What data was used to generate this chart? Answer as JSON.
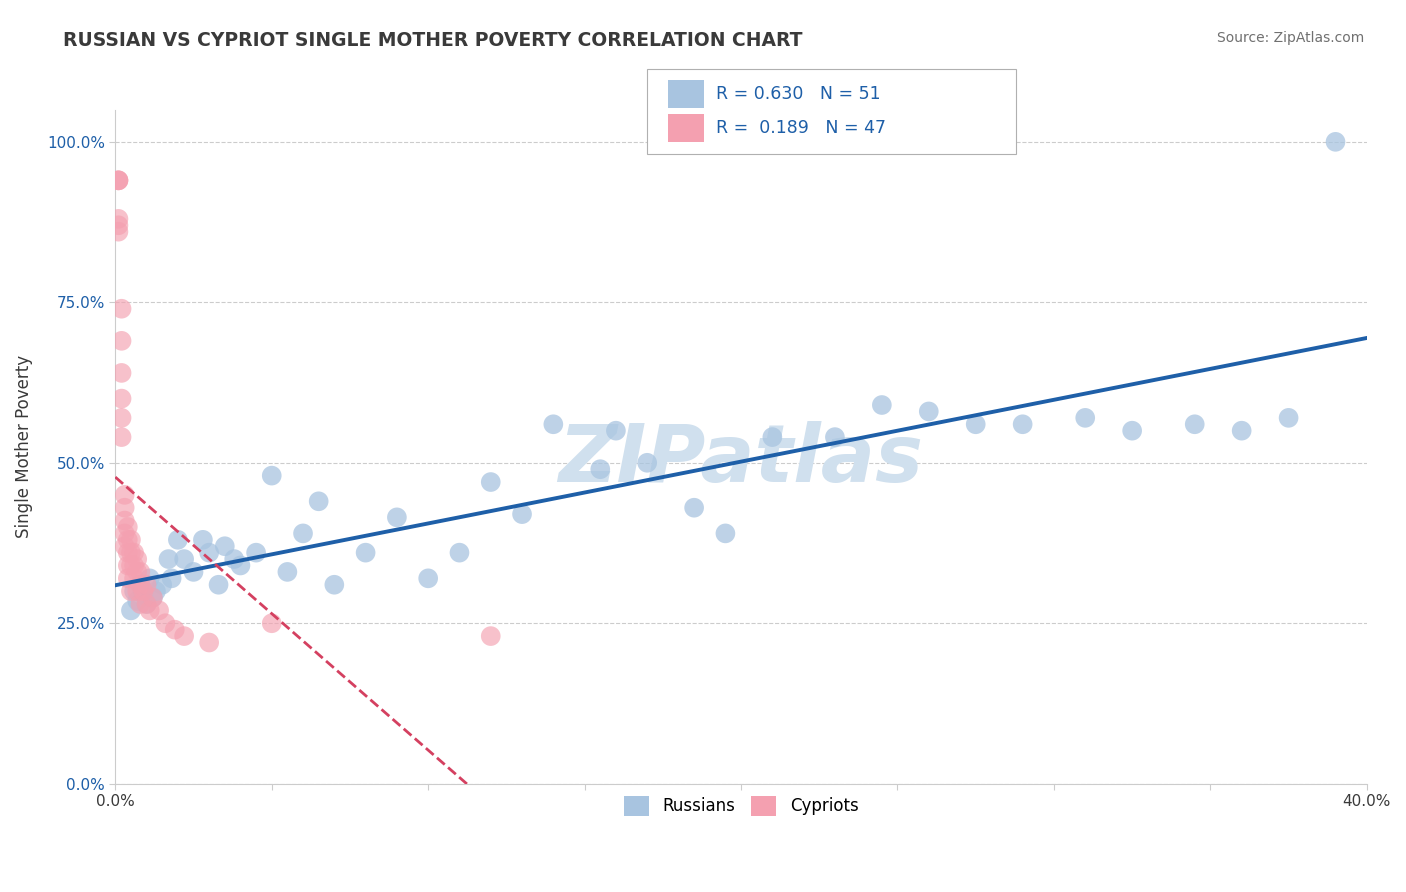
{
  "title": "RUSSIAN VS CYPRIOT SINGLE MOTHER POVERTY CORRELATION CHART",
  "source_text": "Source: ZipAtlas.com",
  "ylabel": "Single Mother Poverty",
  "xlim": [
    0.0,
    0.4
  ],
  "ylim": [
    0.0,
    1.05
  ],
  "yticks": [
    0.0,
    0.25,
    0.5,
    0.75,
    1.0
  ],
  "ytick_labels": [
    "0.0%",
    "25.0%",
    "50.0%",
    "75.0%",
    "100.0%"
  ],
  "xticks": [
    0.0,
    0.05,
    0.1,
    0.15,
    0.2,
    0.25,
    0.3,
    0.35,
    0.4
  ],
  "xtick_labels": [
    "0.0%",
    "",
    "",
    "",
    "",
    "",
    "",
    "",
    "40.0%"
  ],
  "russian_R": 0.63,
  "russian_N": 51,
  "cypriot_R": 0.189,
  "cypriot_N": 47,
  "russian_color": "#a8c4e0",
  "cypriot_color": "#f4a0b0",
  "russian_line_color": "#1e5fa8",
  "cypriot_line_color": "#d44060",
  "watermark": "ZIPatlas",
  "watermark_color": "#d0e0ee",
  "legend_russian_label": "Russians",
  "legend_cypriot_label": "Cypriots",
  "russian_x": [
    0.005,
    0.006,
    0.007,
    0.008,
    0.009,
    0.01,
    0.011,
    0.012,
    0.013,
    0.015,
    0.017,
    0.018,
    0.02,
    0.022,
    0.025,
    0.028,
    0.03,
    0.033,
    0.035,
    0.038,
    0.04,
    0.045,
    0.05,
    0.055,
    0.06,
    0.065,
    0.07,
    0.08,
    0.09,
    0.1,
    0.11,
    0.12,
    0.13,
    0.14,
    0.155,
    0.16,
    0.17,
    0.185,
    0.195,
    0.21,
    0.23,
    0.245,
    0.26,
    0.275,
    0.29,
    0.31,
    0.325,
    0.345,
    0.36,
    0.375,
    0.39
  ],
  "russian_y": [
    0.27,
    0.3,
    0.285,
    0.31,
    0.295,
    0.28,
    0.32,
    0.29,
    0.3,
    0.31,
    0.35,
    0.32,
    0.38,
    0.35,
    0.33,
    0.38,
    0.36,
    0.31,
    0.37,
    0.35,
    0.34,
    0.36,
    0.48,
    0.33,
    0.39,
    0.44,
    0.31,
    0.36,
    0.415,
    0.32,
    0.36,
    0.47,
    0.42,
    0.56,
    0.49,
    0.55,
    0.5,
    0.43,
    0.39,
    0.54,
    0.54,
    0.59,
    0.58,
    0.56,
    0.56,
    0.57,
    0.55,
    0.56,
    0.55,
    0.57,
    1.0
  ],
  "cypriot_x": [
    0.001,
    0.001,
    0.001,
    0.001,
    0.001,
    0.001,
    0.002,
    0.002,
    0.002,
    0.002,
    0.002,
    0.002,
    0.003,
    0.003,
    0.003,
    0.003,
    0.003,
    0.004,
    0.004,
    0.004,
    0.004,
    0.004,
    0.005,
    0.005,
    0.005,
    0.005,
    0.006,
    0.006,
    0.006,
    0.007,
    0.007,
    0.007,
    0.008,
    0.008,
    0.008,
    0.009,
    0.01,
    0.01,
    0.011,
    0.012,
    0.014,
    0.016,
    0.019,
    0.022,
    0.03,
    0.05,
    0.12
  ],
  "cypriot_y": [
    0.94,
    0.94,
    0.94,
    0.88,
    0.87,
    0.86,
    0.74,
    0.69,
    0.64,
    0.6,
    0.57,
    0.54,
    0.45,
    0.43,
    0.41,
    0.39,
    0.37,
    0.4,
    0.38,
    0.36,
    0.34,
    0.32,
    0.38,
    0.36,
    0.34,
    0.3,
    0.36,
    0.34,
    0.32,
    0.35,
    0.33,
    0.3,
    0.33,
    0.31,
    0.28,
    0.3,
    0.31,
    0.28,
    0.27,
    0.29,
    0.27,
    0.25,
    0.24,
    0.23,
    0.22,
    0.25,
    0.23
  ]
}
